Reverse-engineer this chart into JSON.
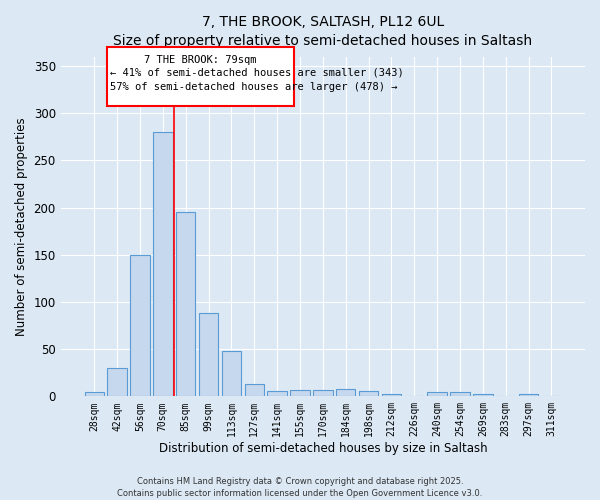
{
  "title": "7, THE BROOK, SALTASH, PL12 6UL",
  "subtitle": "Size of property relative to semi-detached houses in Saltash",
  "xlabel": "Distribution of semi-detached houses by size in Saltash",
  "ylabel": "Number of semi-detached properties",
  "categories": [
    "28sqm",
    "42sqm",
    "56sqm",
    "70sqm",
    "85sqm",
    "99sqm",
    "113sqm",
    "127sqm",
    "141sqm",
    "155sqm",
    "170sqm",
    "184sqm",
    "198sqm",
    "212sqm",
    "226sqm",
    "240sqm",
    "254sqm",
    "269sqm",
    "283sqm",
    "297sqm",
    "311sqm"
  ],
  "values": [
    5,
    30,
    150,
    280,
    195,
    88,
    48,
    13,
    6,
    7,
    7,
    8,
    6,
    3,
    0,
    5,
    5,
    2,
    0,
    3,
    0
  ],
  "bar_color": "#c5d8ed",
  "bar_edge_color": "#5b9bd5",
  "background_color": "#dce9f5",
  "grid_color": "#ffffff",
  "ylim": [
    0,
    360
  ],
  "yticks": [
    0,
    50,
    100,
    150,
    200,
    250,
    300,
    350
  ],
  "vline_x_index": 3.5,
  "annotation_text1": "7 THE BROOK: 79sqm",
  "annotation_text2": "← 41% of semi-detached houses are smaller (343)",
  "annotation_text3": "57% of semi-detached houses are larger (478) →",
  "footer1": "Contains HM Land Registry data © Crown copyright and database right 2025.",
  "footer2": "Contains public sector information licensed under the Open Government Licence v3.0."
}
